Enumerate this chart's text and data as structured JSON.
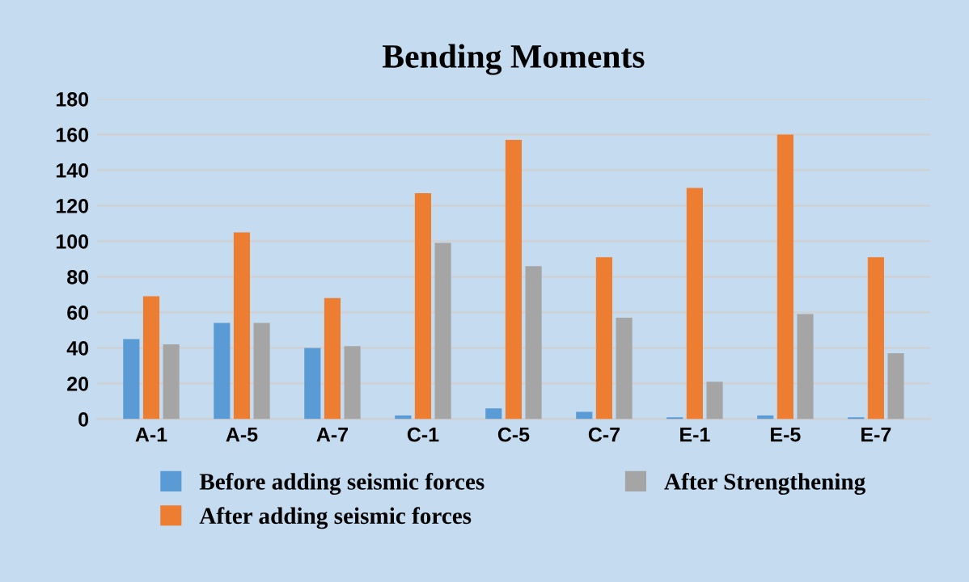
{
  "chart_data": {
    "type": "bar",
    "title": "Bending Moments",
    "categories": [
      "A-1",
      "A-5",
      "A-7",
      "C-1",
      "C-5",
      "C-7",
      "E-1",
      "E-5",
      "E-7"
    ],
    "series": [
      {
        "name": "Before adding seismic forces",
        "color": "#5b9bd5",
        "values": [
          45,
          54,
          40,
          2,
          6,
          4,
          1,
          2,
          1
        ]
      },
      {
        "name": "After adding seismic forces",
        "color": "#ed7d31",
        "values": [
          69,
          105,
          68,
          127,
          157,
          91,
          130,
          160,
          91
        ]
      },
      {
        "name": "After Strengthening",
        "color": "#a5a5a5",
        "values": [
          42,
          54,
          41,
          99,
          86,
          57,
          21,
          59,
          37
        ]
      }
    ],
    "ylim": [
      0,
      180
    ],
    "yticks": [
      0,
      20,
      40,
      60,
      80,
      100,
      120,
      140,
      160,
      180
    ],
    "grid": "y",
    "legend": "bottom"
  }
}
